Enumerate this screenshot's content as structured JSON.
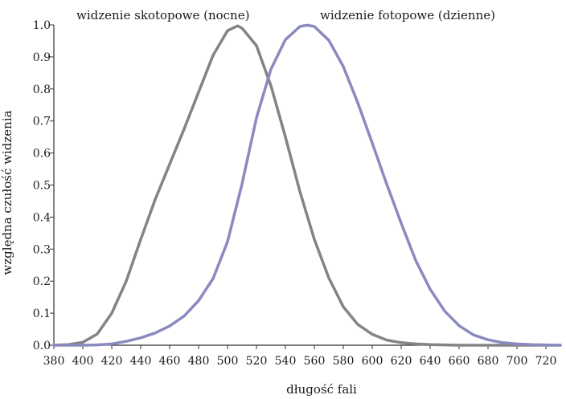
{
  "chart_data": {
    "type": "line",
    "title": "",
    "xlabel": "długość fali",
    "ylabel": "względna czułość widzenia",
    "xlim": [
      380,
      730
    ],
    "ylim": [
      0,
      1.0
    ],
    "x_ticks": [
      "380",
      "400",
      "420",
      "440",
      "460",
      "480",
      "500",
      "520",
      "540",
      "560",
      "580",
      "600",
      "620",
      "640",
      "660",
      "680",
      "700",
      "720"
    ],
    "y_ticks": [
      "0.0",
      "0.1",
      "0.2",
      "0.3",
      "0.4",
      "0.5",
      "0.6",
      "0.7",
      "0.8",
      "0.9",
      "1.0"
    ],
    "grid": false,
    "annotations": [
      {
        "text": "widzenie skotopowe (nocne)"
      },
      {
        "text": "widzenie fotopowe (dzienne)"
      }
    ],
    "series": [
      {
        "color": "#848484",
        "x": [
          380,
          390,
          400,
          410,
          420,
          430,
          440,
          450,
          460,
          470,
          480,
          490,
          500,
          507,
          510,
          520,
          530,
          540,
          550,
          560,
          570,
          580,
          590,
          600,
          610,
          620,
          630,
          640,
          650,
          660,
          670,
          680,
          690,
          700,
          710,
          720,
          730
        ],
        "y": [
          0.0,
          0.002,
          0.009,
          0.035,
          0.1,
          0.2,
          0.33,
          0.455,
          0.565,
          0.675,
          0.79,
          0.905,
          0.982,
          0.997,
          0.99,
          0.935,
          0.81,
          0.65,
          0.48,
          0.33,
          0.21,
          0.12,
          0.065,
          0.034,
          0.016,
          0.008,
          0.004,
          0.002,
          0.001,
          0.0,
          0.0,
          0.0,
          0.0,
          0.0,
          0.0,
          0.0,
          0.0
        ]
      },
      {
        "color": "#8a8ac0",
        "x": [
          380,
          390,
          400,
          410,
          420,
          430,
          440,
          450,
          460,
          470,
          480,
          490,
          500,
          510,
          520,
          530,
          540,
          550,
          555,
          560,
          570,
          580,
          590,
          600,
          610,
          620,
          630,
          640,
          650,
          660,
          670,
          680,
          690,
          700,
          710,
          720,
          730
        ],
        "y": [
          0.0,
          0.0,
          0.0,
          0.001,
          0.004,
          0.012,
          0.023,
          0.038,
          0.06,
          0.091,
          0.139,
          0.208,
          0.323,
          0.503,
          0.71,
          0.862,
          0.954,
          0.995,
          0.999,
          0.995,
          0.952,
          0.87,
          0.757,
          0.631,
          0.503,
          0.381,
          0.265,
          0.175,
          0.107,
          0.061,
          0.032,
          0.017,
          0.008,
          0.004,
          0.002,
          0.001,
          0.0
        ]
      }
    ]
  }
}
